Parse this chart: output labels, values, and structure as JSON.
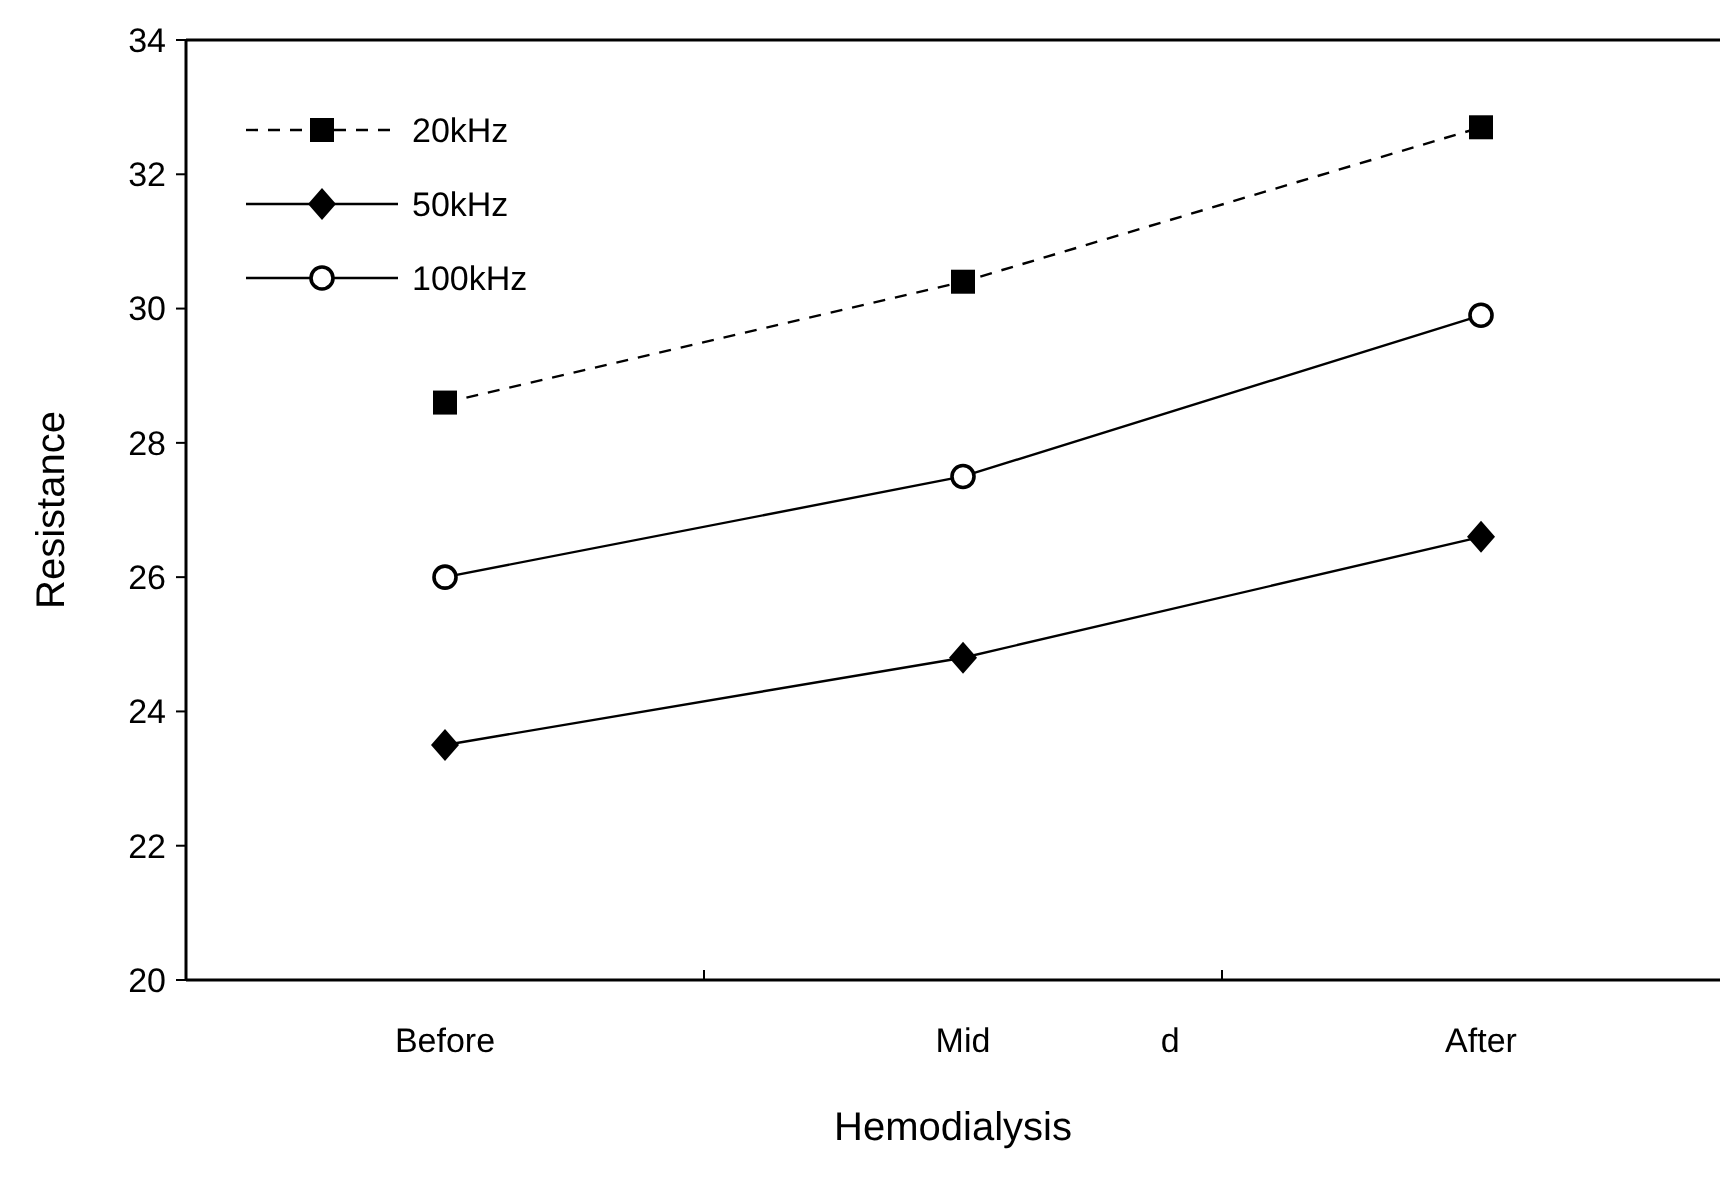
{
  "chart_data": {
    "type": "line",
    "xlabel": "Hemodialysis",
    "ylabel": "Resistance",
    "categories": [
      "Before",
      "Mid",
      "After"
    ],
    "ylim": [
      20,
      34
    ],
    "yticks": [
      20,
      22,
      24,
      26,
      28,
      30,
      32,
      34
    ],
    "grid": false,
    "legend": "top left",
    "series": [
      {
        "name": "20kHz",
        "color": "#000000",
        "values": [
          28.6,
          30.4,
          32.7
        ],
        "marker": "square",
        "line_style": "dashed"
      },
      {
        "name": "50kHz",
        "color": "#000000",
        "values": [
          23.5,
          24.8,
          26.6
        ],
        "marker": "diamond",
        "line_style": "solid"
      },
      {
        "name": "100kHz",
        "color": "#000000",
        "values": [
          26.0,
          27.5,
          29.9
        ],
        "marker": "circle",
        "line_style": "solid"
      }
    ],
    "annotations": [
      "d"
    ]
  }
}
